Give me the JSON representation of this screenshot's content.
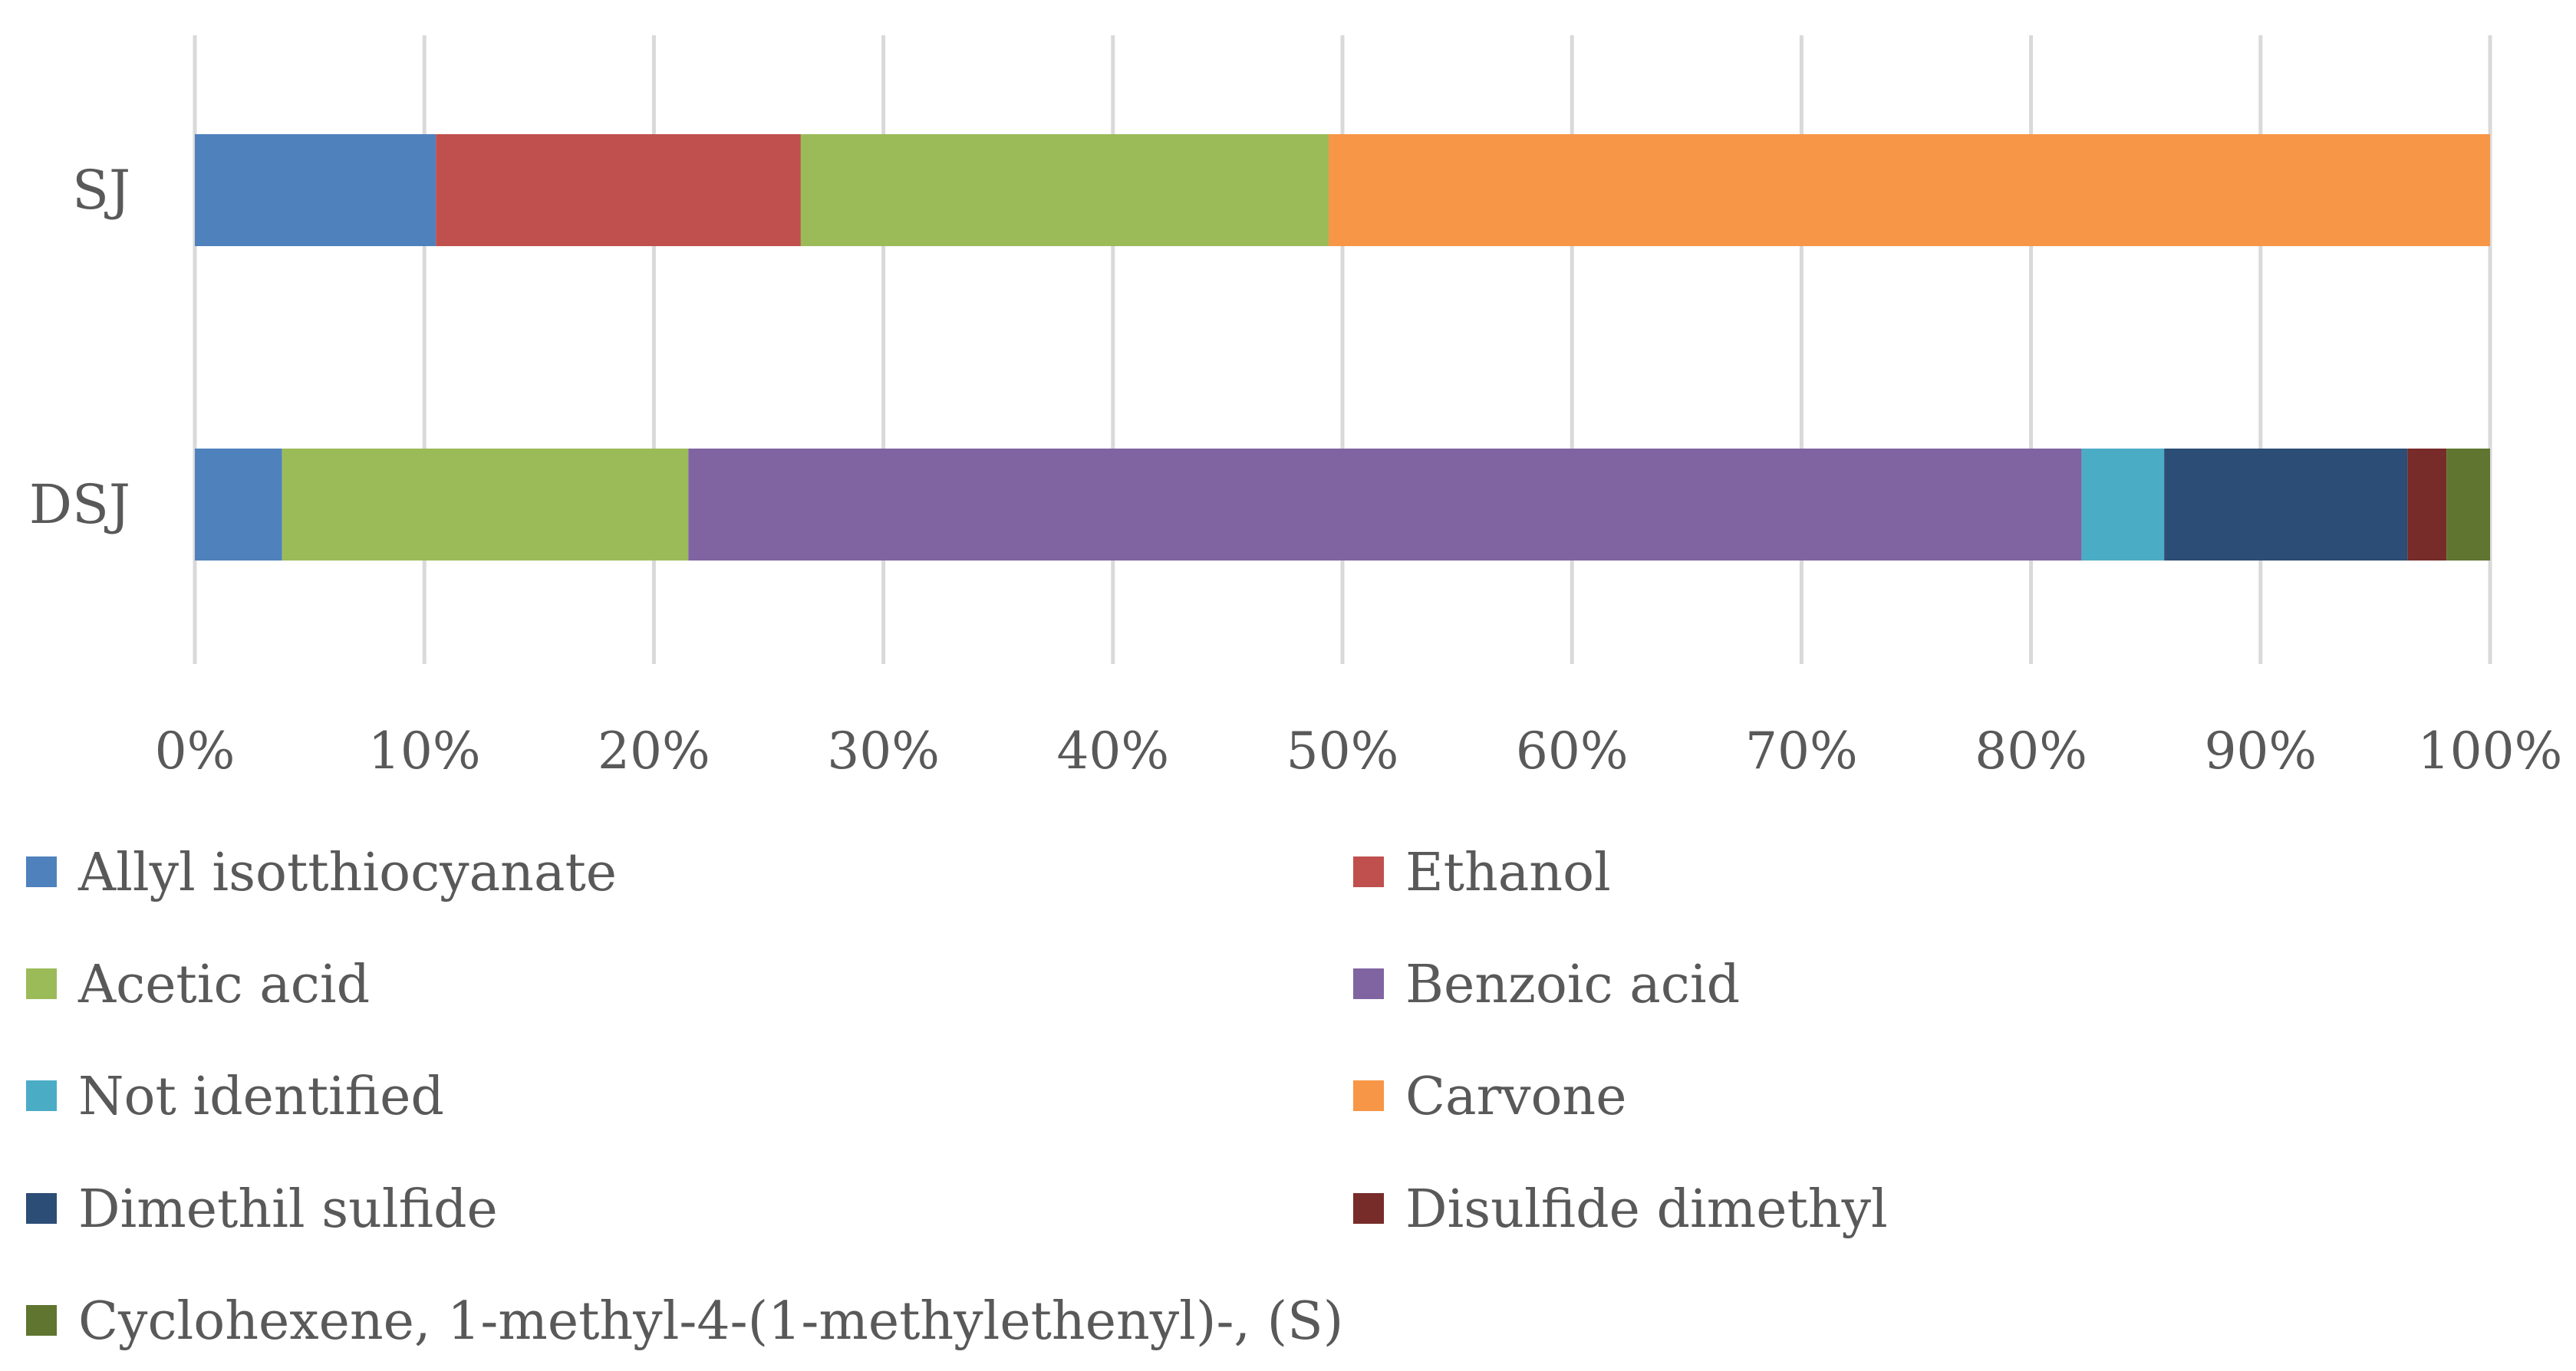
{
  "chart_data": {
    "type": "bar",
    "orientation": "horizontal",
    "stacked": "percent",
    "categories": [
      "SJ",
      "DSJ"
    ],
    "xlim": [
      0,
      100
    ],
    "x_ticks": [
      "0%",
      "10%",
      "20%",
      "30%",
      "40%",
      "50%",
      "60%",
      "70%",
      "80%",
      "90%",
      "100%"
    ],
    "grid": true,
    "legend_position": "bottom",
    "series": [
      {
        "name": "Allyl isotthiocyanate",
        "color": "#4F81BD",
        "values": [
          10.5,
          3.8
        ]
      },
      {
        "name": "Ethanol",
        "color": "#C0504D",
        "values": [
          15.9,
          0
        ]
      },
      {
        "name": "Acetic acid",
        "color": "#9BBB59",
        "values": [
          23.0,
          17.7
        ]
      },
      {
        "name": "Benzoic acid",
        "color": "#8064A2",
        "values": [
          0,
          60.7
        ]
      },
      {
        "name": "Not identified",
        "color": "#4BACC6",
        "values": [
          0,
          3.6
        ]
      },
      {
        "name": "Carvone",
        "color": "#F79646",
        "values": [
          50.6,
          0
        ]
      },
      {
        "name": "Dimethil sulfide",
        "color": "#2C4D75",
        "values": [
          0,
          10.6
        ]
      },
      {
        "name": "Disulfide dimethyl",
        "color": "#772C2A",
        "values": [
          0,
          1.7
        ]
      },
      {
        "name": "Cyclohexene, 1-methyl-4-(1-methylethenyl)-, (S)",
        "color": "#5F7530",
        "values": [
          0,
          1.9
        ]
      }
    ]
  }
}
